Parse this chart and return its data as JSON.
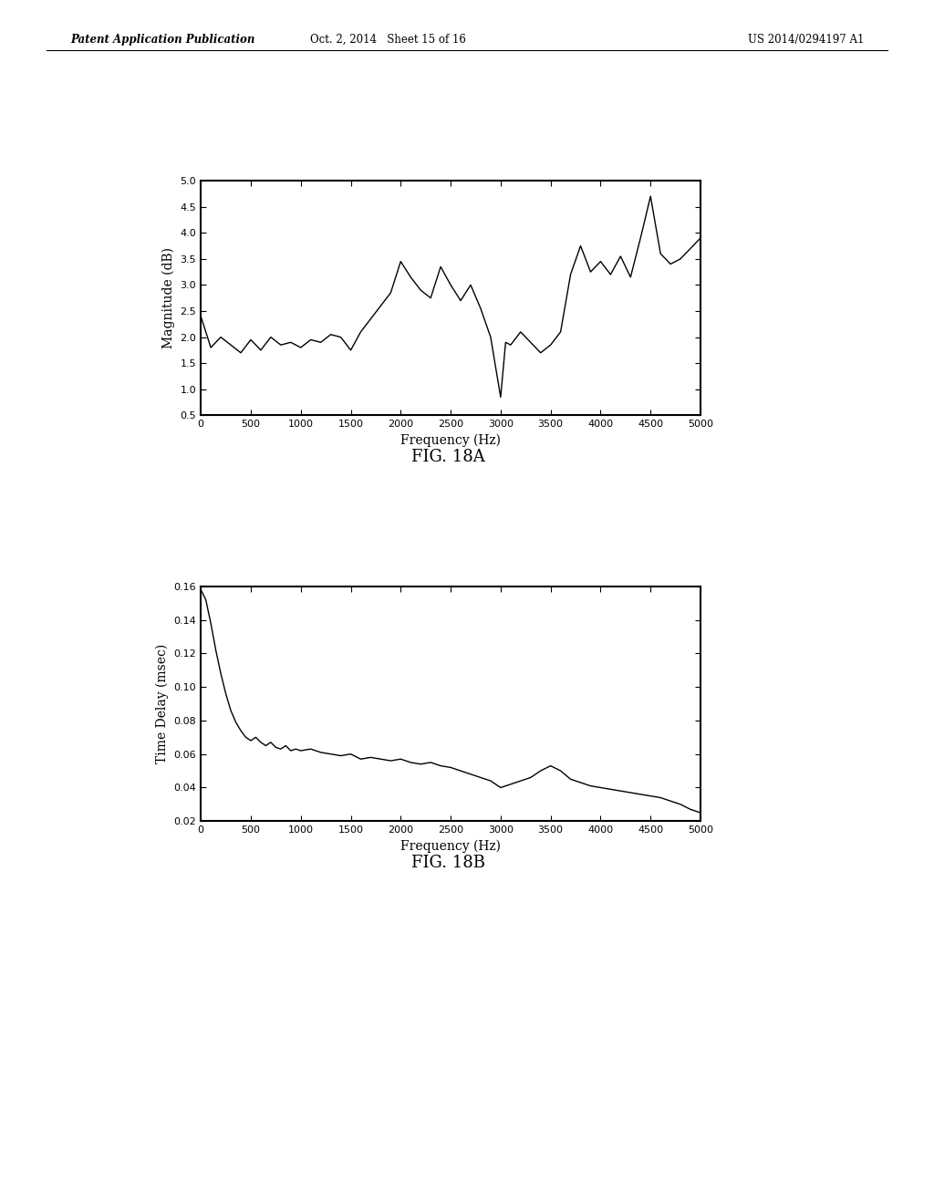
{
  "header_left": "Patent Application Publication",
  "header_center": "Oct. 2, 2014   Sheet 15 of 16",
  "header_right": "US 2014/0294197 A1",
  "fig18a_label": "FIG. 18A",
  "fig18b_label": "FIG. 18B",
  "plot1_xlabel": "Frequency (Hz)",
  "plot1_ylabel": "Magnitude (dB)",
  "plot1_xlim": [
    0,
    5000
  ],
  "plot1_ylim": [
    0.5,
    5
  ],
  "plot1_xticks": [
    0,
    500,
    1000,
    1500,
    2000,
    2500,
    3000,
    3500,
    4000,
    4500,
    5000
  ],
  "plot1_yticks": [
    0.5,
    1,
    1.5,
    2,
    2.5,
    3,
    3.5,
    4,
    4.5,
    5
  ],
  "plot2_xlabel": "Frequency (Hz)",
  "plot2_ylabel": "Time Delay (msec)",
  "plot2_xlim": [
    0,
    5000
  ],
  "plot2_ylim": [
    0.02,
    0.16
  ],
  "plot2_xticks": [
    0,
    500,
    1000,
    1500,
    2000,
    2500,
    3000,
    3500,
    4000,
    4500,
    5000
  ],
  "plot2_yticks": [
    0.02,
    0.04,
    0.06,
    0.08,
    0.1,
    0.12,
    0.14,
    0.16
  ],
  "line_color": "#000000",
  "background_color": "#ffffff",
  "text_color": "#000000",
  "mag_freqs": [
    0,
    100,
    200,
    300,
    400,
    500,
    600,
    700,
    800,
    900,
    1000,
    1100,
    1200,
    1300,
    1400,
    1500,
    1600,
    1700,
    1800,
    1900,
    2000,
    2100,
    2200,
    2300,
    2400,
    2500,
    2600,
    2700,
    2800,
    2900,
    3000,
    3050,
    3100,
    3200,
    3300,
    3400,
    3500,
    3600,
    3700,
    3800,
    3900,
    4000,
    4100,
    4200,
    4300,
    4400,
    4500,
    4600,
    4700,
    4800,
    4900,
    5000
  ],
  "mag_vals": [
    2.4,
    1.8,
    2.0,
    1.85,
    1.7,
    1.95,
    1.75,
    2.0,
    1.85,
    1.9,
    1.8,
    1.95,
    1.9,
    2.05,
    2.0,
    1.75,
    2.1,
    2.35,
    2.6,
    2.85,
    3.45,
    3.15,
    2.9,
    2.75,
    3.35,
    3.0,
    2.7,
    3.0,
    2.55,
    2.0,
    0.85,
    1.9,
    1.85,
    2.1,
    1.9,
    1.7,
    1.85,
    2.1,
    3.2,
    3.75,
    3.25,
    3.45,
    3.2,
    3.55,
    3.15,
    3.9,
    4.7,
    3.6,
    3.4,
    3.5,
    3.7,
    3.9
  ],
  "td_freqs": [
    0,
    50,
    100,
    150,
    200,
    250,
    300,
    350,
    400,
    450,
    500,
    550,
    600,
    650,
    700,
    750,
    800,
    850,
    900,
    950,
    1000,
    1100,
    1200,
    1300,
    1400,
    1500,
    1600,
    1700,
    1800,
    1900,
    2000,
    2100,
    2200,
    2300,
    2400,
    2500,
    2600,
    2700,
    2800,
    2900,
    3000,
    3100,
    3200,
    3300,
    3400,
    3500,
    3600,
    3700,
    3800,
    3900,
    4000,
    4100,
    4200,
    4300,
    4400,
    4500,
    4600,
    4700,
    4800,
    4900,
    5000
  ],
  "td_vals": [
    0.158,
    0.152,
    0.138,
    0.122,
    0.108,
    0.096,
    0.086,
    0.079,
    0.074,
    0.07,
    0.068,
    0.07,
    0.067,
    0.065,
    0.067,
    0.064,
    0.063,
    0.065,
    0.062,
    0.063,
    0.062,
    0.063,
    0.061,
    0.06,
    0.059,
    0.06,
    0.057,
    0.058,
    0.057,
    0.056,
    0.057,
    0.055,
    0.054,
    0.055,
    0.053,
    0.052,
    0.05,
    0.048,
    0.046,
    0.044,
    0.04,
    0.042,
    0.044,
    0.046,
    0.05,
    0.053,
    0.05,
    0.045,
    0.043,
    0.041,
    0.04,
    0.039,
    0.038,
    0.037,
    0.036,
    0.035,
    0.034,
    0.032,
    0.03,
    0.027,
    0.025
  ]
}
